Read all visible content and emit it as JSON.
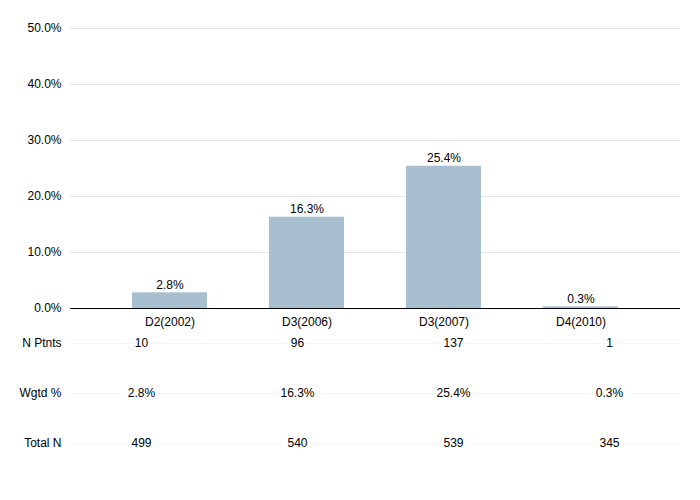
{
  "chart_data": {
    "type": "bar",
    "categories": [
      "D2(2002)",
      "D3(2006)",
      "D3(2007)",
      "D4(2010)"
    ],
    "values": [
      2.8,
      16.3,
      25.4,
      0.3
    ],
    "value_labels": [
      "2.8%",
      "16.3%",
      "25.4%",
      "0.3%"
    ],
    "data_labels": true,
    "color": "#a8bfcf",
    "ylim": [
      0,
      50
    ],
    "yticks": [
      {
        "value": 0,
        "label": "0.0%"
      },
      {
        "value": 10,
        "label": "10.0%"
      },
      {
        "value": 20,
        "label": "20.0%"
      },
      {
        "value": 30,
        "label": "30.0%"
      },
      {
        "value": 40,
        "label": "40.0%"
      },
      {
        "value": 50,
        "label": "50.0%"
      }
    ],
    "grid": true,
    "table": [
      {
        "label": "N Ptnts",
        "values": [
          10,
          96,
          137,
          1
        ]
      },
      {
        "label": "Wgtd %",
        "values": [
          2.8,
          16.3,
          25.4,
          0.3
        ],
        "value_labels": [
          "2.8%",
          "16.3%",
          "25.4%",
          "0.3%"
        ]
      },
      {
        "label": "Total N",
        "values": [
          499,
          540,
          539,
          345
        ]
      }
    ]
  }
}
